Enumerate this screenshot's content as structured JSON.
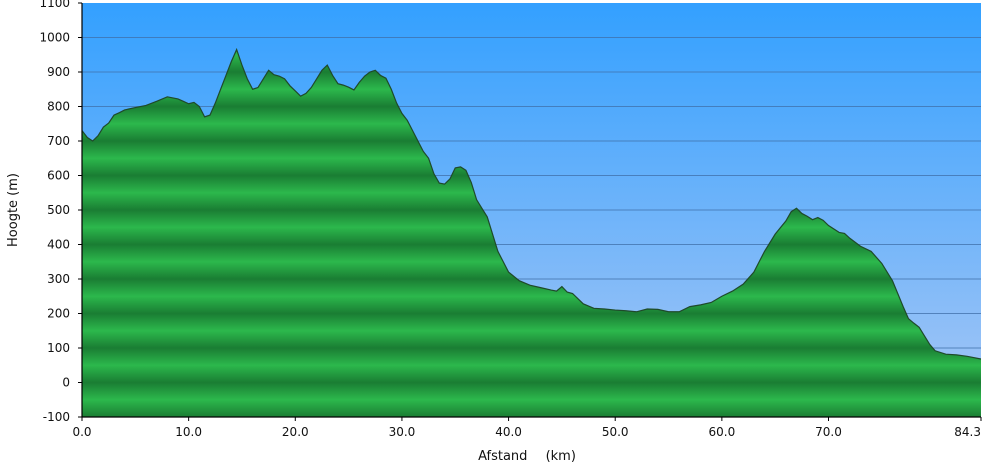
{
  "chart_data": {
    "type": "area",
    "xlabel": "Afstand",
    "xunit": "(km)",
    "ylabel": "Hoogte (m)",
    "xlim": [
      0.0,
      84.3
    ],
    "ylim": [
      -100,
      1100
    ],
    "x_ticks": [
      0.0,
      10.0,
      20.0,
      30.0,
      40.0,
      50.0,
      60.0,
      70.0,
      84.3
    ],
    "x_tick_labels": [
      "0.0",
      "10.0",
      "20.0",
      "30.0",
      "40.0",
      "50.0",
      "60.0",
      "70.0",
      "84.3"
    ],
    "y_ticks": [
      -100,
      0,
      100,
      200,
      300,
      400,
      500,
      600,
      700,
      800,
      900,
      1000,
      1100
    ],
    "y_tick_labels": [
      "-100",
      "0",
      "100",
      "200",
      "300",
      "400",
      "500",
      "600",
      "700",
      "800",
      "900",
      "1000",
      "1100"
    ],
    "grid": "horizontal",
    "colors": {
      "sky_top": "#33a0ff",
      "sky_bottom": "#a8c7f5",
      "fill_light": "#2cb84c",
      "fill_dark": "#1a7d33",
      "outline": "#1f4a2a",
      "grid": "#3f6fa8",
      "axis": "#000000"
    },
    "series": [
      {
        "points": [
          [
            0.0,
            730
          ],
          [
            0.5,
            710
          ],
          [
            1.0,
            700
          ],
          [
            1.5,
            715
          ],
          [
            2.0,
            740
          ],
          [
            2.5,
            752
          ],
          [
            3.0,
            775
          ],
          [
            3.5,
            782
          ],
          [
            4.0,
            790
          ],
          [
            5.0,
            797
          ],
          [
            6.0,
            803
          ],
          [
            7.0,
            815
          ],
          [
            8.0,
            828
          ],
          [
            9.0,
            822
          ],
          [
            9.5,
            815
          ],
          [
            10.0,
            808
          ],
          [
            10.5,
            812
          ],
          [
            11.0,
            800
          ],
          [
            11.5,
            770
          ],
          [
            12.0,
            775
          ],
          [
            12.5,
            810
          ],
          [
            13.0,
            850
          ],
          [
            13.5,
            890
          ],
          [
            14.0,
            930
          ],
          [
            14.5,
            965
          ],
          [
            15.0,
            920
          ],
          [
            15.5,
            880
          ],
          [
            16.0,
            850
          ],
          [
            16.5,
            855
          ],
          [
            17.0,
            880
          ],
          [
            17.5,
            905
          ],
          [
            18.0,
            892
          ],
          [
            18.5,
            888
          ],
          [
            19.0,
            880
          ],
          [
            19.5,
            860
          ],
          [
            20.0,
            845
          ],
          [
            20.5,
            830
          ],
          [
            21.0,
            838
          ],
          [
            21.5,
            855
          ],
          [
            22.0,
            880
          ],
          [
            22.5,
            905
          ],
          [
            23.0,
            920
          ],
          [
            23.5,
            890
          ],
          [
            24.0,
            866
          ],
          [
            24.5,
            862
          ],
          [
            25.0,
            856
          ],
          [
            25.5,
            848
          ],
          [
            26.0,
            870
          ],
          [
            26.5,
            888
          ],
          [
            27.0,
            900
          ],
          [
            27.5,
            905
          ],
          [
            28.0,
            890
          ],
          [
            28.5,
            882
          ],
          [
            29.0,
            850
          ],
          [
            29.5,
            810
          ],
          [
            30.0,
            780
          ],
          [
            30.5,
            760
          ],
          [
            31.0,
            730
          ],
          [
            31.5,
            700
          ],
          [
            32.0,
            670
          ],
          [
            32.5,
            650
          ],
          [
            33.0,
            605
          ],
          [
            33.5,
            578
          ],
          [
            34.0,
            575
          ],
          [
            34.5,
            590
          ],
          [
            35.0,
            622
          ],
          [
            35.5,
            625
          ],
          [
            36.0,
            615
          ],
          [
            36.5,
            580
          ],
          [
            37.0,
            530
          ],
          [
            37.5,
            505
          ],
          [
            38.0,
            480
          ],
          [
            38.5,
            430
          ],
          [
            39.0,
            380
          ],
          [
            39.5,
            350
          ],
          [
            40.0,
            320
          ],
          [
            41.0,
            295
          ],
          [
            42.0,
            282
          ],
          [
            43.0,
            275
          ],
          [
            44.0,
            268
          ],
          [
            44.5,
            265
          ],
          [
            45.0,
            278
          ],
          [
            45.5,
            262
          ],
          [
            46.0,
            258
          ],
          [
            47.0,
            228
          ],
          [
            48.0,
            215
          ],
          [
            49.0,
            213
          ],
          [
            50.0,
            210
          ],
          [
            51.0,
            208
          ],
          [
            52.0,
            205
          ],
          [
            53.0,
            213
          ],
          [
            54.0,
            212
          ],
          [
            55.0,
            205
          ],
          [
            56.0,
            205
          ],
          [
            57.0,
            220
          ],
          [
            58.0,
            225
          ],
          [
            59.0,
            232
          ],
          [
            60.0,
            250
          ],
          [
            61.0,
            265
          ],
          [
            62.0,
            285
          ],
          [
            63.0,
            320
          ],
          [
            64.0,
            380
          ],
          [
            65.0,
            430
          ],
          [
            66.0,
            468
          ],
          [
            66.5,
            495
          ],
          [
            67.0,
            505
          ],
          [
            67.5,
            490
          ],
          [
            68.0,
            482
          ],
          [
            68.5,
            472
          ],
          [
            69.0,
            478
          ],
          [
            69.5,
            470
          ],
          [
            70.0,
            455
          ],
          [
            71.0,
            435
          ],
          [
            71.5,
            432
          ],
          [
            72.0,
            418
          ],
          [
            73.0,
            395
          ],
          [
            74.0,
            380
          ],
          [
            75.0,
            345
          ],
          [
            76.0,
            295
          ],
          [
            77.0,
            220
          ],
          [
            77.5,
            185
          ],
          [
            78.0,
            172
          ],
          [
            78.5,
            160
          ],
          [
            79.0,
            135
          ],
          [
            79.5,
            110
          ],
          [
            80.0,
            92
          ],
          [
            81.0,
            82
          ],
          [
            82.0,
            80
          ],
          [
            83.0,
            76
          ],
          [
            84.3,
            68
          ]
        ]
      }
    ]
  }
}
